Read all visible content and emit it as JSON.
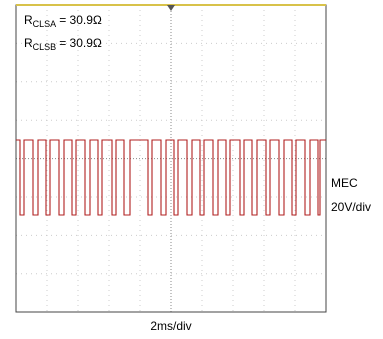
{
  "annotations": [
    {
      "symbol": "R",
      "subscript": "CLSA",
      "value": "= 30.9Ω"
    },
    {
      "symbol": "R",
      "subscript": "CLSB",
      "value": "= 30.9Ω"
    }
  ],
  "channel_label": "MEC",
  "vertical_scale": "20V/div",
  "timebase": "2ms/div"
}
